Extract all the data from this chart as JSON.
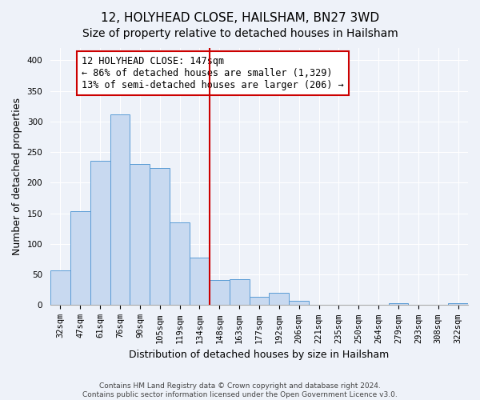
{
  "title": "12, HOLYHEAD CLOSE, HAILSHAM, BN27 3WD",
  "subtitle": "Size of property relative to detached houses in Hailsham",
  "xlabel": "Distribution of detached houses by size in Hailsham",
  "ylabel": "Number of detached properties",
  "bar_labels": [
    "32sqm",
    "47sqm",
    "61sqm",
    "76sqm",
    "90sqm",
    "105sqm",
    "119sqm",
    "134sqm",
    "148sqm",
    "163sqm",
    "177sqm",
    "192sqm",
    "206sqm",
    "221sqm",
    "235sqm",
    "250sqm",
    "264sqm",
    "279sqm",
    "293sqm",
    "308sqm",
    "322sqm"
  ],
  "bar_values": [
    57,
    154,
    236,
    311,
    230,
    224,
    135,
    78,
    41,
    42,
    14,
    20,
    7,
    0,
    0,
    0,
    0,
    3,
    0,
    0,
    3
  ],
  "bar_color": "#c8d9f0",
  "bar_edge_color": "#5a9bd5",
  "vline_index": 8,
  "vline_color": "#cc0000",
  "ylim": [
    0,
    420
  ],
  "yticks": [
    0,
    50,
    100,
    150,
    200,
    250,
    300,
    350,
    400
  ],
  "annotation_title": "12 HOLYHEAD CLOSE: 147sqm",
  "annotation_line1": "← 86% of detached houses are smaller (1,329)",
  "annotation_line2": "13% of semi-detached houses are larger (206) →",
  "annotation_box_color": "#ffffff",
  "annotation_box_edge": "#cc0000",
  "footer_line1": "Contains HM Land Registry data © Crown copyright and database right 2024.",
  "footer_line2": "Contains public sector information licensed under the Open Government Licence v3.0.",
  "background_color": "#eef2f9",
  "grid_color": "#ffffff",
  "title_fontsize": 11,
  "subtitle_fontsize": 10,
  "ylabel_fontsize": 9,
  "xlabel_fontsize": 9,
  "tick_fontsize": 7.5,
  "annot_fontsize": 8.5
}
